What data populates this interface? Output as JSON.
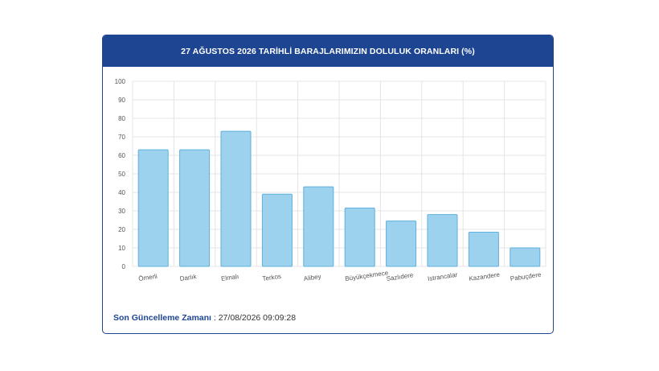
{
  "header": {
    "title": "27 AĞUSTOS 2026 TARİHLİ BARAJLARIMIZIN DOLULUK ORANLARI (%)"
  },
  "footer": {
    "label": "Son Güncelleme Zamanı",
    "separator": " : ",
    "value": "27/08/2026 09:09:28"
  },
  "colors": {
    "header_bg": "#1e4592",
    "bar_fill": "#9dd2ee",
    "bar_stroke": "#5fb0dc",
    "grid": "#e4e4e4"
  },
  "chart_data": {
    "type": "bar",
    "categories": [
      "Ömerli",
      "Darlık",
      "Elmalı",
      "Terkos",
      "Alibey",
      "Büyükçekmece",
      "Sazlıdere",
      "Istrancalar",
      "Kazandere",
      "Pabuçdere"
    ],
    "values": [
      63,
      63,
      73,
      39,
      43,
      31.5,
      24.5,
      28,
      18.5,
      10
    ],
    "title": "27 AĞUSTOS 2026 TARİHLİ BARAJLARIMIZIN DOLULUK ORANLARI (%)",
    "xlabel": "",
    "ylabel": "",
    "ylim": [
      0,
      100
    ],
    "yticks": [
      "0",
      "10",
      "20",
      "30",
      "40",
      "50",
      "60",
      "70",
      "80",
      "90",
      "100"
    ],
    "grid": true,
    "legend": "none"
  }
}
